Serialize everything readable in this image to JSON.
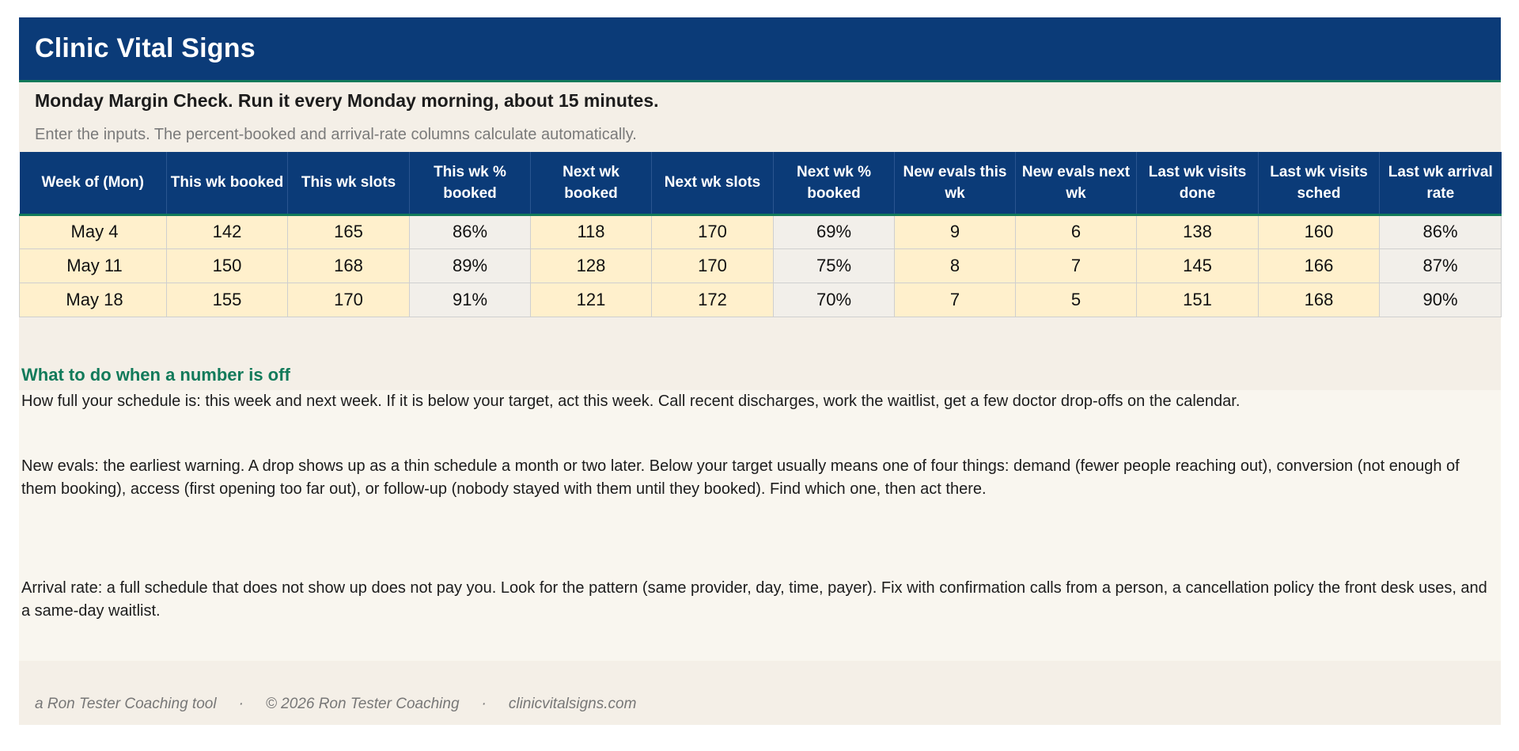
{
  "header": {
    "title": "Clinic Vital Signs",
    "subtitle": "Monday Margin Check. Run it every Monday morning, about 15 minutes.",
    "instructions": "Enter the inputs. The percent-booked and arrival-rate columns calculate automatically."
  },
  "table": {
    "columns": [
      "Week of (Mon)",
      "This wk booked",
      "This wk slots",
      "This wk % booked",
      "Next wk booked",
      "Next wk slots",
      "Next wk % booked",
      "New evals this wk",
      "New evals next wk",
      "Last wk visits done",
      "Last wk visits sched",
      "Last wk arrival rate"
    ],
    "rows": [
      [
        "May 4",
        "142",
        "165",
        "86%",
        "118",
        "170",
        "69%",
        "9",
        "6",
        "138",
        "160",
        "86%"
      ],
      [
        "May 11",
        "150",
        "168",
        "89%",
        "128",
        "170",
        "75%",
        "8",
        "7",
        "145",
        "166",
        "87%"
      ],
      [
        "May 18",
        "155",
        "170",
        "91%",
        "121",
        "172",
        "70%",
        "7",
        "5",
        "151",
        "168",
        "90%"
      ]
    ]
  },
  "guidance": {
    "heading": "What to do when a number is off",
    "notes": [
      "How full your schedule is: this week and next week. If it is below your target, act this week. Call recent discharges, work the waitlist, get a few doctor drop-offs on the calendar.",
      "New evals: the earliest warning. A drop shows up as a thin schedule a month or two later. Below your target usually means one of four things: demand (fewer people reaching out), conversion (not enough of them booking), access (first opening too far out), or follow-up (nobody stayed with them until they booked). Find which one, then act there.",
      "Arrival rate: a full schedule that does not show up does not pay you. Look for the pattern (same provider, day, time, payer). Fix with confirmation calls from a person, a cancellation policy the front desk uses, and a same-day waitlist."
    ]
  },
  "footer": {
    "tool": "a Ron Tester Coaching tool",
    "separator": "·",
    "copyright": "© 2026 Ron Tester Coaching",
    "site": "clinicvitalsigns.com"
  },
  "colors": {
    "header_bg": "#0b3b78",
    "accent_green": "#127a5a",
    "input_cell": "#fff0cc",
    "calc_cell": "#f2efea",
    "band_bg": "#f4efe7"
  }
}
